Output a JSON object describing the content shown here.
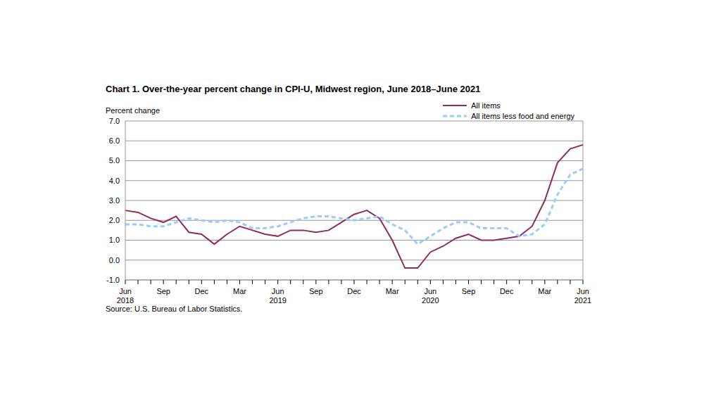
{
  "chart_data": {
    "type": "line",
    "title": "Chart 1. Over-the-year percent change in CPI-U, Midwest region, June 2018–June 2021",
    "y_label": "Percent change",
    "source": "Source: U.S. Bureau of Labor Statistics.",
    "categories": [
      "Jun 2018",
      null,
      null,
      "Sep",
      null,
      null,
      "Dec",
      null,
      null,
      "Mar",
      null,
      null,
      "Jun 2019",
      null,
      null,
      "Sep",
      null,
      null,
      "Dec",
      null,
      null,
      "Mar",
      null,
      null,
      "Jun 2020",
      null,
      null,
      "Sep",
      null,
      null,
      "Dec",
      null,
      null,
      "Mar",
      null,
      null,
      "Jun 2021"
    ],
    "series": [
      {
        "name": "All items",
        "color": "#8e2c5a",
        "line_style": "solid",
        "values": [
          2.5,
          2.4,
          2.1,
          1.9,
          2.2,
          1.4,
          1.3,
          0.8,
          1.3,
          1.7,
          1.5,
          1.3,
          1.2,
          1.5,
          1.5,
          1.4,
          1.5,
          1.9,
          2.3,
          2.5,
          2.1,
          1.0,
          -0.4,
          -0.4,
          0.4,
          0.7,
          1.1,
          1.3,
          1.0,
          1.0,
          1.1,
          1.2,
          1.7,
          3.0,
          4.9,
          5.6,
          5.8
        ]
      },
      {
        "name": "All items less food and energy",
        "color": "#99ccff",
        "line_style": "dashed",
        "values": [
          1.8,
          1.8,
          1.7,
          1.7,
          1.9,
          2.1,
          2.0,
          1.9,
          2.0,
          1.9,
          1.6,
          1.6,
          1.7,
          1.9,
          2.1,
          2.2,
          2.2,
          2.1,
          2.0,
          2.1,
          2.2,
          1.8,
          1.5,
          0.8,
          1.2,
          1.6,
          1.9,
          1.9,
          1.6,
          1.6,
          1.6,
          1.2,
          1.3,
          1.8,
          3.3,
          4.3,
          4.6
        ]
      }
    ],
    "ylim": [
      -1,
      7
    ],
    "yticks": [
      {
        "value": -1,
        "label": "-1.0"
      },
      {
        "value": 0,
        "label": "0.0"
      },
      {
        "value": 1,
        "label": "1.0"
      },
      {
        "value": 2,
        "label": "2.0"
      },
      {
        "value": 3,
        "label": "3.0"
      },
      {
        "value": 4,
        "label": "4.0"
      },
      {
        "value": 5,
        "label": "5.0"
      },
      {
        "value": 6,
        "label": "6.0"
      },
      {
        "value": 7,
        "label": "7.0"
      }
    ],
    "grid": true,
    "legend": "top-right"
  }
}
